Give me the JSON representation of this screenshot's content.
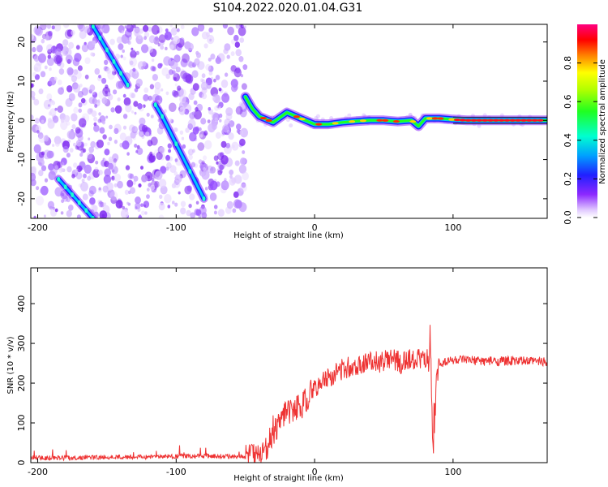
{
  "title": "S104.2022.020.01.04.G31",
  "chart_data": [
    {
      "type": "heatmap",
      "xlabel": "Height of straight line (km)",
      "ylabel": "Frequency (Hz)",
      "xlim": [
        -205,
        168
      ],
      "ylim": [
        -25,
        24.5
      ],
      "xticks": [
        -200,
        -100,
        0,
        100
      ],
      "yticks": [
        20,
        10,
        0,
        -10,
        -20
      ],
      "colorbar": {
        "label": "Normalized spectral amplitude",
        "range": [
          0,
          1
        ],
        "ticks": [
          0.0,
          0.2,
          0.4,
          0.6,
          0.8
        ]
      },
      "tracks": [
        {
          "x": [
            -160,
            -155,
            -150,
            -145,
            -140,
            -135
          ],
          "freq": [
            24,
            21,
            18,
            15,
            12,
            9
          ]
        },
        {
          "x": [
            -115,
            -110,
            -100,
            -90,
            -80
          ],
          "freq": [
            4,
            1,
            -6,
            -13,
            -20
          ]
        },
        {
          "x": [
            -185,
            -180,
            -175,
            -170,
            -165,
            -160
          ],
          "freq": [
            -15,
            -17,
            -19,
            -21,
            -23,
            -25
          ]
        },
        {
          "x": [
            -50,
            -45,
            -40,
            -30,
            -20,
            -10,
            0,
            10,
            20,
            30,
            40,
            50,
            60,
            70,
            75,
            80,
            90,
            100,
            110,
            120,
            130,
            140,
            150,
            168
          ],
          "freq": [
            6,
            3,
            1,
            -0.5,
            2,
            0.5,
            -1,
            -1,
            -0.5,
            -0.2,
            0,
            0,
            -0.3,
            0,
            -1.5,
            0.5,
            0.5,
            0.2,
            0,
            0,
            0,
            0,
            0,
            0
          ]
        }
      ]
    },
    {
      "type": "line",
      "xlabel": "Height of straight line (km)",
      "ylabel": "SNR (10 * v/v)",
      "xlim": [
        -205,
        168
      ],
      "ylim": [
        0,
        490
      ],
      "xticks": [
        -200,
        -100,
        0,
        100
      ],
      "yticks": [
        0,
        100,
        200,
        300,
        400
      ],
      "series": [
        {
          "color": "#ee3333",
          "x": [
            -205,
            -190,
            -175,
            -160,
            -145,
            -130,
            -115,
            -100,
            -85,
            -70,
            -60,
            -50,
            -45,
            -40,
            -35,
            -30,
            -25,
            -20,
            -15,
            -10,
            -5,
            0,
            5,
            10,
            15,
            20,
            25,
            30,
            35,
            40,
            45,
            50,
            55,
            60,
            63,
            65,
            70,
            75,
            80,
            84,
            85,
            86,
            88,
            90,
            95,
            100,
            110,
            120,
            130,
            140,
            150,
            160,
            168
          ],
          "y": [
            12,
            12,
            12,
            13,
            14,
            14,
            15,
            16,
            16,
            17,
            16,
            15,
            15,
            18,
            40,
            70,
            100,
            125,
            135,
            140,
            165,
            185,
            200,
            215,
            225,
            235,
            240,
            245,
            250,
            252,
            254,
            255,
            257,
            258,
            250,
            255,
            258,
            262,
            260,
            255,
            60,
            40,
            200,
            250,
            255,
            258,
            257,
            256,
            255,
            256,
            255,
            255,
            255
          ]
        }
      ]
    }
  ]
}
